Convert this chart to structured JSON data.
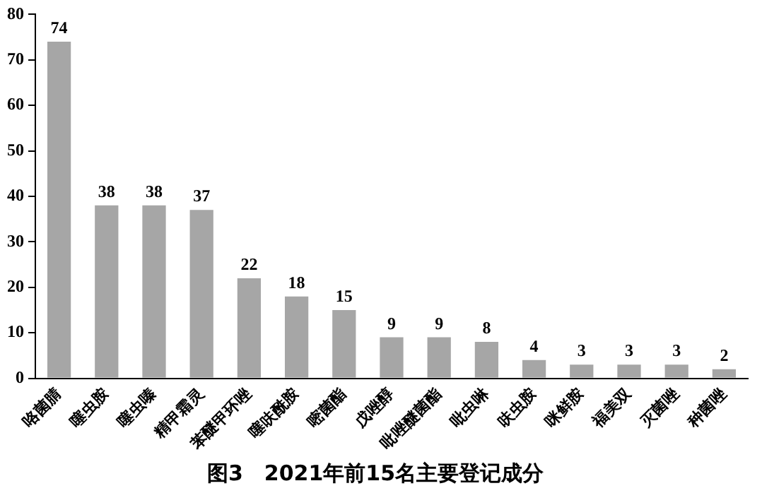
{
  "chart_data": {
    "type": "bar",
    "title": "图3　2021年前15名主要登记成分",
    "categories": [
      "咯菌腈",
      "噻虫胺",
      "噻虫嗪",
      "精甲霜灵",
      "苯醚甲环唑",
      "噻呋酰胺",
      "嘧菌酯",
      "戊唑醇",
      "吡唑醚菌酯",
      "吡虫啉",
      "呋虫胺",
      "咪鲜胺",
      "福美双",
      "灭菌唑",
      "种菌唑"
    ],
    "values": [
      74,
      38,
      38,
      37,
      22,
      18,
      15,
      9,
      9,
      8,
      4,
      3,
      3,
      3,
      2
    ],
    "color": "#a6a6a6",
    "ylim": [
      0,
      80
    ],
    "yticks": [
      0,
      10,
      20,
      30,
      40,
      50,
      60,
      70,
      80
    ],
    "grid": false,
    "legend": false,
    "data_labels": true
  }
}
